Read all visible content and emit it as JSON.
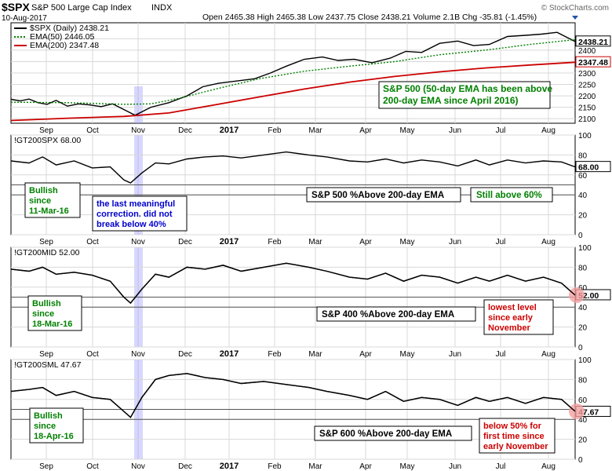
{
  "header": {
    "ticker": "$SPX",
    "name": "S&P 500 Large Cap Index",
    "exchange": "INDX",
    "date": "10-Aug-2017",
    "quote": "Open 2465.38  High 2465.38  Low 2437.75  Close 2438.21  Volume 2.1B  Chg -35.81 (-1.45%)",
    "brand": "© StockCharts.com"
  },
  "x_labels": [
    "Sep",
    "Oct",
    "Nov",
    "Dec",
    "2017",
    "Feb",
    "Mar",
    "Apr",
    "May",
    "Jun",
    "Jul",
    "Aug"
  ],
  "colors": {
    "price": "#000000",
    "ema50": "#008000",
    "ema200": "#cc0000",
    "highlight": "#8b8bff",
    "green_text": "#008000",
    "blue_text": "#0000cc",
    "red_text": "#cc0000",
    "circle": "#f4a0a0"
  },
  "chart_data": [
    {
      "type": "line",
      "legend": [
        "$SPX (Daily) 2438.21",
        "EMA(50) 2446.05",
        "EMA(200) 2347.48"
      ],
      "ylim": [
        2080,
        2520
      ],
      "yticks": [
        2100,
        2150,
        2200,
        2250,
        2300,
        2350,
        2400,
        2450
      ],
      "last_labels": [
        "2438.21",
        "2347.48"
      ],
      "series": [
        {
          "name": "$SPX",
          "x": [
            0,
            4,
            8,
            12,
            16,
            20,
            25,
            30,
            35,
            40,
            45,
            50,
            55,
            62,
            70,
            78,
            85,
            92,
            100,
            108,
            115,
            122,
            130,
            138,
            145,
            152,
            160,
            168,
            175,
            182,
            190,
            198,
            205,
            212,
            220,
            228,
            235,
            242,
            250
          ],
          "values": [
            2185,
            2178,
            2186,
            2170,
            2163,
            2180,
            2155,
            2165,
            2160,
            2153,
            2165,
            2140,
            2115,
            2150,
            2170,
            2200,
            2240,
            2255,
            2265,
            2275,
            2300,
            2330,
            2360,
            2370,
            2355,
            2360,
            2345,
            2365,
            2395,
            2390,
            2430,
            2440,
            2420,
            2425,
            2460,
            2465,
            2470,
            2478,
            2438
          ]
        },
        {
          "name": "EMA(50)",
          "x": [
            0,
            25,
            50,
            62,
            75,
            90,
            110,
            130,
            150,
            170,
            190,
            210,
            230,
            250
          ],
          "values": [
            2172,
            2170,
            2163,
            2165,
            2190,
            2228,
            2275,
            2308,
            2330,
            2350,
            2380,
            2400,
            2425,
            2446
          ]
        },
        {
          "name": "EMA(200)",
          "x": [
            0,
            25,
            50,
            70,
            90,
            110,
            130,
            150,
            170,
            190,
            210,
            230,
            250
          ],
          "values": [
            2092,
            2102,
            2110,
            2125,
            2160,
            2195,
            2230,
            2260,
            2285,
            2305,
            2322,
            2335,
            2347
          ]
        }
      ],
      "annotations": [
        "S&P 500 (50-day EMA has been above",
        "200-day EMA since April 2016)"
      ]
    },
    {
      "type": "line",
      "legend": [
        "!GT200SPX 68.00"
      ],
      "ylim": [
        0,
        100
      ],
      "yticks": [
        0,
        20,
        40,
        60,
        80,
        100
      ],
      "last_labels": [
        "68.00"
      ],
      "series": [
        {
          "name": "!GT200SPX",
          "x": [
            0,
            8,
            14,
            20,
            28,
            36,
            44,
            50,
            53,
            58,
            64,
            70,
            78,
            86,
            94,
            102,
            112,
            122,
            132,
            140,
            150,
            158,
            166,
            174,
            182,
            190,
            198,
            206,
            212,
            220,
            228,
            236,
            244,
            250
          ],
          "values": [
            74,
            72,
            78,
            70,
            74,
            67,
            68,
            55,
            52,
            62,
            72,
            71,
            76,
            78,
            79,
            77,
            80,
            83,
            80,
            78,
            74,
            73,
            76,
            72,
            75,
            73,
            69,
            75,
            70,
            75,
            72,
            74,
            73,
            68
          ]
        }
      ],
      "annotations": [
        "Bullish",
        "since",
        "11-Mar-16",
        "the last meaningful",
        "correction. did not",
        "break below 40%",
        "S&P 500 %Above 200-day EMA",
        "Still above 60%"
      ]
    },
    {
      "type": "line",
      "legend": [
        "!GT200MID 52.00"
      ],
      "ylim": [
        0,
        100
      ],
      "yticks": [
        0,
        20,
        40,
        60,
        80,
        100
      ],
      "last_labels": [
        "52.00"
      ],
      "series": [
        {
          "name": "!GT200MID",
          "x": [
            0,
            8,
            14,
            20,
            28,
            36,
            44,
            50,
            53,
            58,
            64,
            70,
            78,
            86,
            94,
            102,
            112,
            122,
            132,
            140,
            150,
            158,
            166,
            174,
            182,
            190,
            198,
            206,
            212,
            220,
            228,
            236,
            244,
            250
          ],
          "values": [
            78,
            76,
            80,
            73,
            75,
            72,
            66,
            50,
            44,
            58,
            73,
            70,
            80,
            78,
            82,
            76,
            80,
            84,
            80,
            76,
            70,
            68,
            74,
            66,
            72,
            70,
            64,
            70,
            66,
            72,
            66,
            70,
            64,
            52
          ]
        }
      ],
      "annotations": [
        "Bullish",
        "since",
        "18-Mar-16",
        "S&P 400 %Above 200-day EMA",
        "lowest level",
        "since early",
        "November"
      ]
    },
    {
      "type": "line",
      "legend": [
        "!GT200SML 47.67"
      ],
      "ylim": [
        0,
        100
      ],
      "yticks": [
        0,
        20,
        40,
        60,
        80,
        100
      ],
      "last_labels": [
        "47.67"
      ],
      "series": [
        {
          "name": "!GT200SML",
          "x": [
            0,
            8,
            14,
            20,
            28,
            36,
            44,
            50,
            53,
            58,
            64,
            70,
            78,
            86,
            94,
            102,
            112,
            122,
            132,
            140,
            150,
            158,
            166,
            174,
            182,
            190,
            198,
            206,
            212,
            220,
            228,
            236,
            244,
            250
          ],
          "values": [
            68,
            70,
            72,
            64,
            68,
            62,
            60,
            48,
            42,
            62,
            80,
            84,
            86,
            82,
            80,
            76,
            78,
            75,
            72,
            68,
            64,
            60,
            68,
            58,
            62,
            60,
            54,
            62,
            58,
            62,
            56,
            62,
            60,
            48
          ]
        }
      ],
      "annotations": [
        "Bullish",
        "since",
        "18-Apr-16",
        "S&P 600 %Above 200-day EMA",
        "below 50% for",
        "first time since",
        "early November"
      ]
    }
  ]
}
